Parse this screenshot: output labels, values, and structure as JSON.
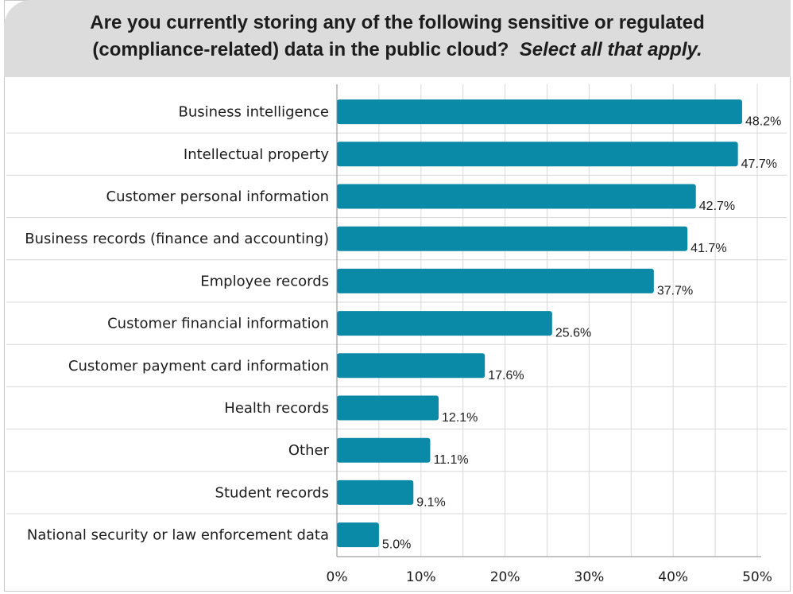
{
  "title": {
    "line1": "Are you currently storing any of the following sensitive or regulated",
    "line2": "(compliance-related) data in the public cloud?",
    "line2_italic": "Select all that apply."
  },
  "colors": {
    "bar": "#0a8aa6",
    "header_bg": "#dcdcdc",
    "grid": "#d8d8d8"
  },
  "chart_data": {
    "type": "bar",
    "orientation": "horizontal",
    "categories": [
      "Business intelligence",
      "Intellectual property",
      "Customer personal information",
      "Business records (finance and accounting)",
      "Employee records",
      "Customer financial information",
      "Customer payment card information",
      "Health records",
      "Other",
      "Student records",
      "National security or law enforcement data"
    ],
    "values": [
      48.2,
      47.7,
      42.7,
      41.7,
      37.7,
      25.6,
      17.6,
      12.1,
      11.1,
      9.1,
      5.0
    ],
    "value_labels": [
      "48.2%",
      "47.7%",
      "42.7%",
      "41.7%",
      "37.7%",
      "25.6%",
      "17.6%",
      "12.1%",
      "11.1%",
      "9.1%",
      "5.0%"
    ],
    "xlim": [
      0,
      50
    ],
    "xticks": [
      0,
      10,
      20,
      30,
      40,
      50
    ],
    "xtick_labels": [
      "0%",
      "10%",
      "20%",
      "30%",
      "40%",
      "50%"
    ],
    "grid": true,
    "legend": "none"
  }
}
